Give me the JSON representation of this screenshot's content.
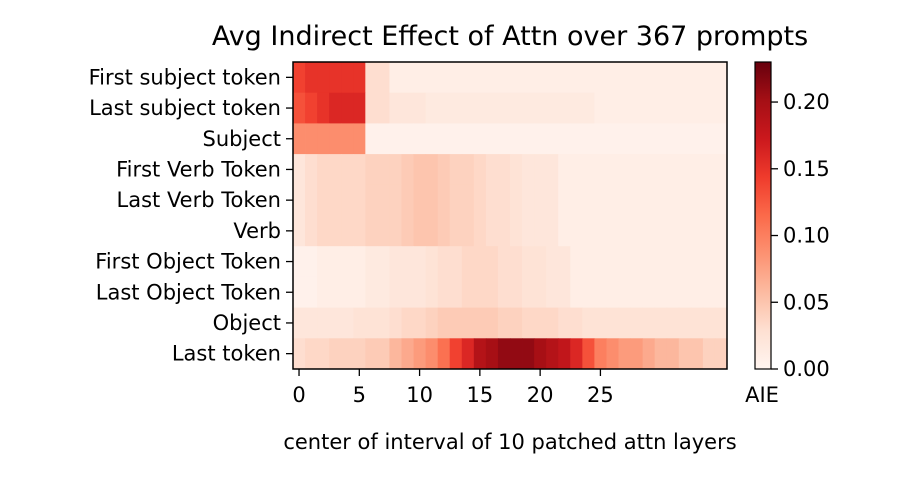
{
  "chart_data": {
    "type": "heatmap",
    "title": "Avg Indirect Effect of Attn over 367 prompts",
    "xlabel": "center of interval of 10 patched attn layers",
    "ylabel": "",
    "rows": [
      "First subject token",
      "Last subject token",
      "Subject",
      "First Verb Token",
      "Last Verb Token",
      "Verb",
      "First Object Token",
      "Last Object Token",
      "Object",
      "Last token"
    ],
    "x_ticks": [
      0,
      5,
      10,
      15,
      20,
      25
    ],
    "x_tick_labels": [
      "0",
      "5",
      "10",
      "15",
      "20",
      "25"
    ],
    "n_columns": 36,
    "colorbar": {
      "label": "AIE",
      "range": [
        0,
        0.23
      ],
      "ticks": [
        0.0,
        0.05,
        0.1,
        0.15,
        0.2
      ],
      "tick_labels": [
        "0.00",
        "0.05",
        "0.10",
        "0.15",
        "0.20"
      ],
      "colormap": "Reds"
    },
    "values": [
      [
        0.14,
        0.15,
        0.15,
        0.15,
        0.15,
        0.15,
        0.03,
        0.03,
        0.01,
        0.01,
        0.01,
        0.01,
        0.01,
        0.01,
        0.01,
        0.01,
        0.01,
        0.01,
        0.01,
        0.01,
        0.01,
        0.01,
        0.01,
        0.01,
        0.01,
        0.01,
        0.01,
        0.01,
        0.01,
        0.01,
        0.01,
        0.01,
        0.01,
        0.01,
        0.01,
        0.01
      ],
      [
        0.13,
        0.14,
        0.15,
        0.16,
        0.16,
        0.16,
        0.03,
        0.03,
        0.02,
        0.02,
        0.02,
        0.015,
        0.015,
        0.015,
        0.015,
        0.015,
        0.015,
        0.015,
        0.015,
        0.015,
        0.015,
        0.015,
        0.015,
        0.015,
        0.015,
        0.01,
        0.01,
        0.01,
        0.01,
        0.01,
        0.01,
        0.01,
        0.01,
        0.01,
        0.01,
        0.01
      ],
      [
        0.09,
        0.09,
        0.09,
        0.09,
        0.09,
        0.09,
        0.005,
        0.005,
        0.005,
        0.005,
        0.005,
        0.005,
        0.005,
        0.005,
        0.005,
        0.005,
        0.005,
        0.005,
        0.005,
        0.005,
        0.005,
        0.005,
        0.005,
        0.005,
        0.005,
        0.005,
        0.005,
        0.005,
        0.005,
        0.005,
        0.005,
        0.005,
        0.005,
        0.005,
        0.005,
        0.005
      ],
      [
        0.02,
        0.03,
        0.035,
        0.035,
        0.035,
        0.035,
        0.04,
        0.04,
        0.04,
        0.045,
        0.05,
        0.05,
        0.045,
        0.04,
        0.04,
        0.035,
        0.03,
        0.03,
        0.025,
        0.02,
        0.02,
        0.02,
        0.01,
        0.01,
        0.01,
        0.01,
        0.01,
        0.01,
        0.01,
        0.01,
        0.01,
        0.01,
        0.01,
        0.01,
        0.01,
        0.01
      ],
      [
        0.02,
        0.03,
        0.035,
        0.035,
        0.035,
        0.035,
        0.04,
        0.04,
        0.04,
        0.045,
        0.05,
        0.05,
        0.045,
        0.04,
        0.04,
        0.035,
        0.03,
        0.03,
        0.025,
        0.02,
        0.02,
        0.02,
        0.01,
        0.01,
        0.01,
        0.01,
        0.01,
        0.01,
        0.01,
        0.01,
        0.01,
        0.01,
        0.01,
        0.01,
        0.01,
        0.01
      ],
      [
        0.02,
        0.03,
        0.035,
        0.035,
        0.035,
        0.035,
        0.04,
        0.04,
        0.04,
        0.045,
        0.05,
        0.05,
        0.045,
        0.04,
        0.04,
        0.035,
        0.03,
        0.03,
        0.025,
        0.02,
        0.02,
        0.02,
        0.01,
        0.01,
        0.01,
        0.01,
        0.01,
        0.01,
        0.01,
        0.01,
        0.01,
        0.01,
        0.01,
        0.01,
        0.01,
        0.01
      ],
      [
        0.005,
        0.005,
        0.01,
        0.01,
        0.01,
        0.01,
        0.015,
        0.015,
        0.02,
        0.02,
        0.02,
        0.025,
        0.03,
        0.03,
        0.035,
        0.035,
        0.035,
        0.03,
        0.03,
        0.025,
        0.025,
        0.02,
        0.02,
        0.01,
        0.01,
        0.01,
        0.01,
        0.01,
        0.01,
        0.01,
        0.01,
        0.01,
        0.01,
        0.01,
        0.01,
        0.01
      ],
      [
        0.005,
        0.005,
        0.01,
        0.01,
        0.01,
        0.01,
        0.015,
        0.015,
        0.02,
        0.02,
        0.02,
        0.025,
        0.03,
        0.03,
        0.035,
        0.035,
        0.035,
        0.03,
        0.03,
        0.025,
        0.025,
        0.02,
        0.02,
        0.01,
        0.01,
        0.01,
        0.01,
        0.01,
        0.01,
        0.01,
        0.01,
        0.01,
        0.01,
        0.01,
        0.01,
        0.01
      ],
      [
        0.02,
        0.02,
        0.02,
        0.02,
        0.02,
        0.025,
        0.025,
        0.025,
        0.03,
        0.035,
        0.035,
        0.04,
        0.045,
        0.045,
        0.045,
        0.045,
        0.045,
        0.04,
        0.04,
        0.035,
        0.035,
        0.035,
        0.03,
        0.03,
        0.025,
        0.025,
        0.025,
        0.025,
        0.025,
        0.025,
        0.025,
        0.025,
        0.025,
        0.025,
        0.025,
        0.025
      ],
      [
        0.03,
        0.035,
        0.035,
        0.04,
        0.04,
        0.04,
        0.045,
        0.045,
        0.06,
        0.07,
        0.08,
        0.09,
        0.11,
        0.14,
        0.16,
        0.19,
        0.2,
        0.21,
        0.21,
        0.21,
        0.2,
        0.19,
        0.18,
        0.16,
        0.13,
        0.1,
        0.09,
        0.08,
        0.08,
        0.07,
        0.06,
        0.06,
        0.05,
        0.05,
        0.04,
        0.04
      ]
    ]
  }
}
